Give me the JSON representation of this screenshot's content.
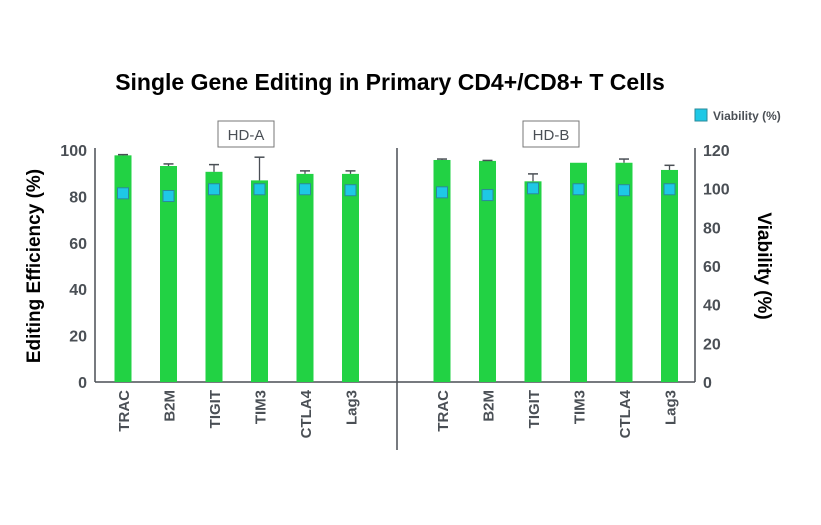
{
  "chart_data": {
    "type": "bar",
    "title": "Single Gene Editing in Primary CD4+/CD8+ T Cells",
    "ylabel": "Editing Efficiency (%)",
    "y2label": "Viability (%)",
    "ylim": [
      0,
      100
    ],
    "y2lim": [
      0,
      120
    ],
    "yticks": [
      0,
      20,
      40,
      60,
      80,
      100
    ],
    "y2ticks": [
      0,
      20,
      40,
      60,
      80,
      100,
      120
    ],
    "grid": false,
    "legend": {
      "position": "top-right",
      "entries": [
        {
          "label": "Viability (%)",
          "marker": "square",
          "color": "#1ec8e6"
        }
      ]
    },
    "colors": {
      "bar": "#22d244",
      "viability": "#1ec8e6",
      "axis": "#4a4f55"
    },
    "panels": [
      {
        "label": "HD-A",
        "categories": [
          "TRAC",
          "B2M",
          "TIGIT",
          "TIM3",
          "CTLA4",
          "Lag3"
        ],
        "editing_efficiency": [
          97.7,
          93.1,
          90.6,
          86.9,
          89.7,
          89.7
        ],
        "error_upper": [
          98.0,
          94.0,
          93.7,
          96.9,
          91.0,
          91.0
        ],
        "viability": [
          97.6,
          96.2,
          99.7,
          99.7,
          99.7,
          99.2
        ]
      },
      {
        "label": "HD-B",
        "categories": [
          "TRAC",
          "B2M",
          "TIGIT",
          "TIM3",
          "CTLA4",
          "Lag3"
        ],
        "editing_efficiency": [
          95.7,
          95.3,
          86.5,
          94.5,
          94.5,
          91.4
        ],
        "error_upper": [
          96.1,
          95.5,
          89.7,
          94.5,
          96.1,
          93.4
        ],
        "viability": [
          98.1,
          96.7,
          100.2,
          99.7,
          99.2,
          99.7
        ]
      }
    ]
  }
}
